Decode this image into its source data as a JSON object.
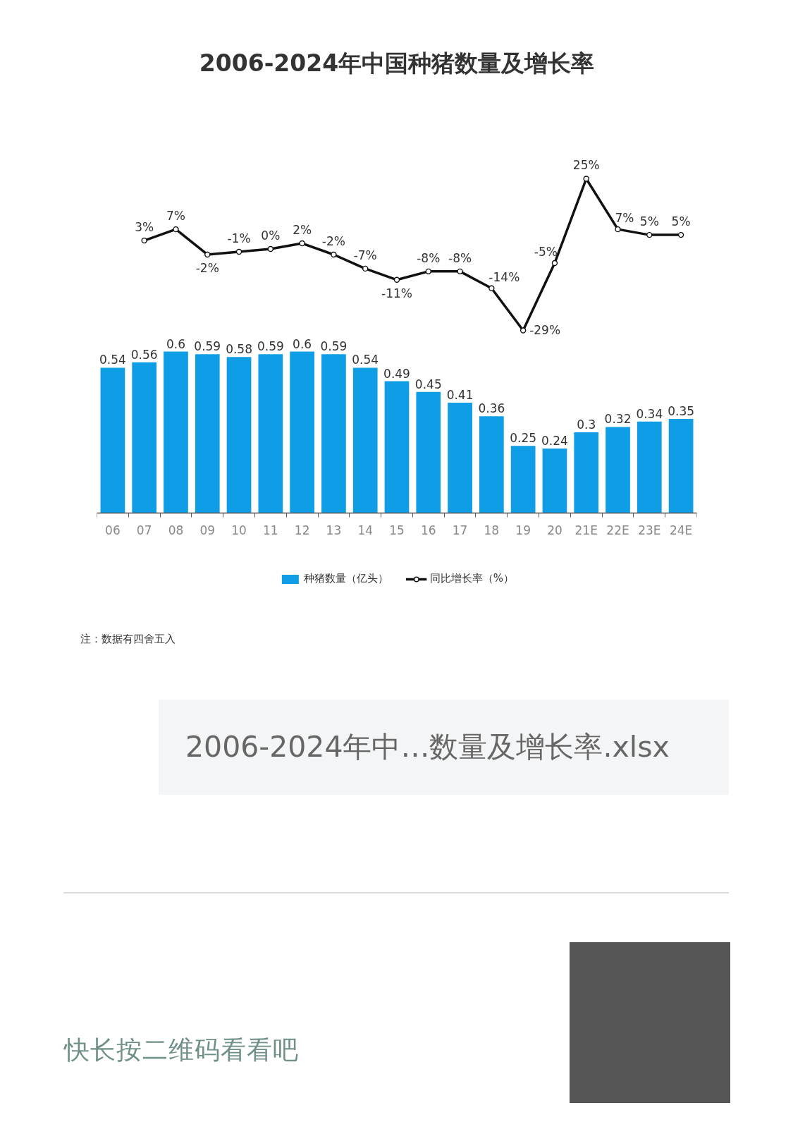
{
  "chart_data": [
    {
      "type": "line",
      "title": "2006-2024年中国种猪数量及增长率",
      "categories": [
        null,
        null,
        null,
        null,
        null,
        null,
        null,
        null,
        null,
        null,
        null,
        null,
        null,
        null,
        null,
        null,
        null,
        null,
        null
      ],
      "series": [
        {
          "name": "同比增长率（%）",
          "color": "#111111",
          "values": [
            null,
            3,
            7,
            -2,
            -1,
            0,
            2,
            -2,
            -7,
            -11,
            -8,
            -8,
            -14,
            -29,
            -5,
            25,
            7,
            5,
            5
          ],
          "value_labels": [
            null,
            "3%",
            "7%",
            "-2%",
            "-1%",
            "0%",
            "2%",
            "-2%",
            "-7%",
            "-11%",
            "-8%",
            "-8%",
            "-14%",
            "-29%",
            "-5%",
            "25%",
            "7%",
            "5%",
            "5%"
          ]
        }
      ],
      "tick_labels": false,
      "legend": "bottom",
      "marker": "circle",
      "line_style": "solid"
    },
    {
      "type": "bar",
      "categories": [
        "06",
        "07",
        "08",
        "09",
        "10",
        "11",
        "12",
        "13",
        "14",
        "15",
        "16",
        "17",
        "18",
        "19",
        "20",
        "21E",
        "22E",
        "23E",
        "24E"
      ],
      "series": [
        {
          "name": "种猪数量（亿头）",
          "color": "#0f9de6",
          "values": [
            0.54,
            0.56,
            0.6,
            0.59,
            0.58,
            0.59,
            0.6,
            0.59,
            0.54,
            0.49,
            0.45,
            0.41,
            0.36,
            0.25,
            0.24,
            0.3,
            0.32,
            0.34,
            0.35
          ],
          "value_labels": [
            "0.54",
            "0.56",
            "0.6",
            "0.59",
            "0.58",
            "0.59",
            "0.6",
            "0.59",
            "0.54",
            "0.49",
            "0.45",
            "0.41",
            "0.36",
            "0.25",
            "0.24",
            "0.3",
            "0.32",
            "0.34",
            "0.35"
          ]
        }
      ],
      "tick_labels": "x",
      "legend": "bottom",
      "annotations": [
        "注：数据有四舍五入",
        "2006-2024年中…数量及增长率.xlsx",
        "快长按二维码看看吧"
      ]
    }
  ]
}
